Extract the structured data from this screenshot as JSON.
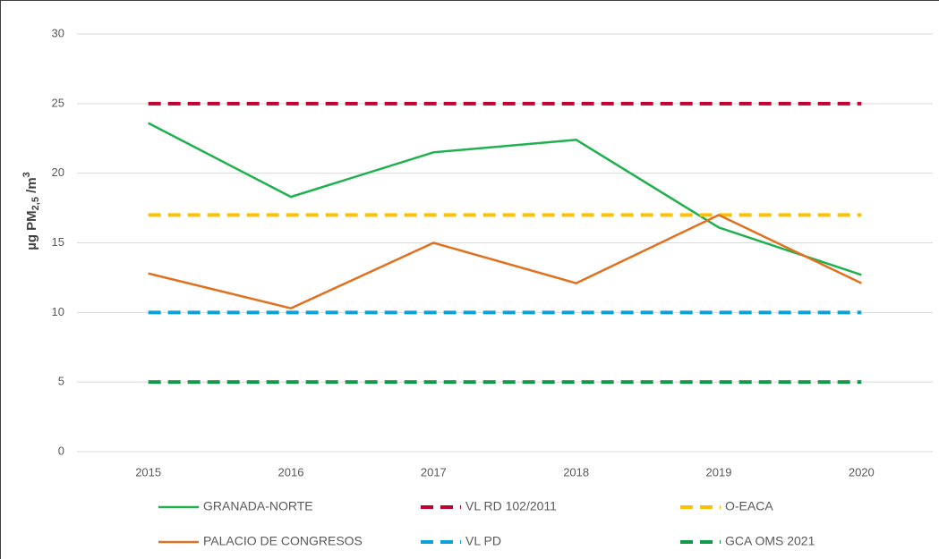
{
  "chart_data": {
    "type": "line",
    "y_label": {
      "base": "µg PM",
      "subscript": "2,5",
      "middle": " /m",
      "superscript": "3"
    },
    "categories": [
      "2015",
      "2016",
      "2017",
      "2018",
      "2019",
      "2020"
    ],
    "ylim": [
      0,
      30
    ],
    "yticks": [
      0,
      5,
      10,
      15,
      20,
      25,
      30
    ],
    "grid": true,
    "legend": "bottom",
    "series": [
      {
        "name": "GRANADA-NORTE",
        "color": "#1fb14e",
        "dashed": false,
        "values": [
          23.6,
          18.3,
          21.5,
          22.4,
          16.1,
          12.7
        ]
      },
      {
        "name": "VL RD 102/2011",
        "color": "#c00030",
        "dashed": true,
        "values": [
          25,
          25,
          25,
          25,
          25,
          25
        ]
      },
      {
        "name": "O-EACA",
        "color": "#ffc000",
        "dashed": true,
        "values": [
          17,
          17,
          17,
          17,
          17,
          17
        ]
      },
      {
        "name": "PALACIO DE CONGRESOS",
        "color": "#e0711f",
        "dashed": false,
        "values": [
          12.8,
          10.3,
          15.0,
          12.1,
          17.0,
          12.1
        ]
      },
      {
        "name": "VL PD",
        "color": "#0ea0d8",
        "dashed": true,
        "values": [
          10,
          10,
          10,
          10,
          10,
          10
        ]
      },
      {
        "name": "GCA OMS 2021",
        "color": "#13994a",
        "dashed": true,
        "values": [
          5,
          5,
          5,
          5,
          5,
          5
        ]
      }
    ]
  }
}
